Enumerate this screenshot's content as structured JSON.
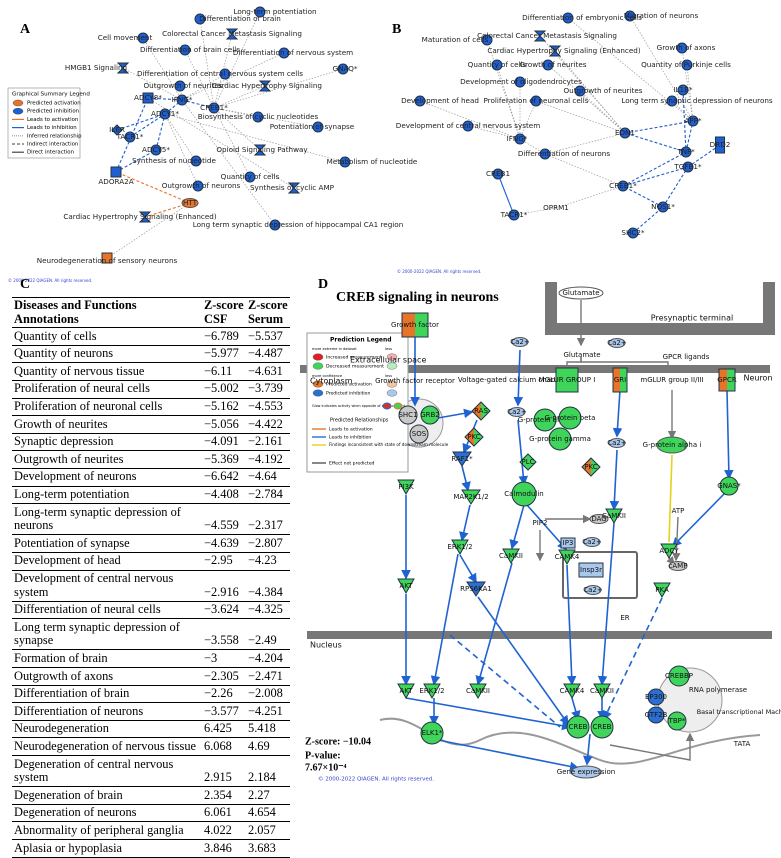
{
  "panel_a": {
    "letter": "A",
    "nodes": [
      {
        "label": "Differentiation of brain"
      },
      {
        "label": "Long-term potentiation"
      },
      {
        "label": "Cell movement"
      },
      {
        "label": "Colorectal Cancer Metastasis Signaling"
      },
      {
        "label": "Differentiation of brain cells"
      },
      {
        "label": "Differentiation of nervous system"
      },
      {
        "label": "HMGB1 Signaling"
      },
      {
        "label": "GNAQ*"
      },
      {
        "label": "Differentiation of central nervous system cells"
      },
      {
        "label": "Outgrowth of neurites"
      },
      {
        "label": "Cardiac Hypertrophy Signaling"
      },
      {
        "label": "IFNG*"
      },
      {
        "label": "ADCY1*"
      },
      {
        "label": "ADCY8*"
      },
      {
        "label": "CREB1*"
      },
      {
        "label": "TACR1*"
      },
      {
        "label": "IL6R"
      },
      {
        "label": "ADCY5*"
      },
      {
        "label": "Biosynthesis of cyclic nucleotides"
      },
      {
        "label": "Potentiation of synapse"
      },
      {
        "label": "Opioid Signaling Pathway"
      },
      {
        "label": "Synthesis of nucleotide"
      },
      {
        "label": "Metabolism of nucleotide"
      },
      {
        "label": "ADORA2A"
      },
      {
        "label": "Quantity of cells"
      },
      {
        "label": "Outgrowth of neurons"
      },
      {
        "label": "Synthesis of cyclic AMP"
      },
      {
        "label": "HTT"
      },
      {
        "label": "Cardiac Hypertrophy Signaling (Enhanced)"
      },
      {
        "label": "Long term synaptic depression of hippocampal CA1 region"
      },
      {
        "label": "Neurodegeneration of sensory neurons"
      }
    ],
    "legend": {
      "title": "Graphical Summary Legend",
      "items": [
        "Predicted activation",
        "Predicted inhibition",
        "Leads to activation",
        "Leads to inhibition",
        "Inferred relationship",
        "Indirect interaction",
        "Direct interaction"
      ]
    },
    "copyright": "© 2000-2022 QIAGEN. All rights reserved."
  },
  "panel_b": {
    "letter": "B",
    "nodes": [
      {
        "label": "Migration of neurons"
      },
      {
        "label": "Differentiation of embryonic cells"
      },
      {
        "label": "Maturation of cells"
      },
      {
        "label": "Colorectal Cancer Metastasis Signaling"
      },
      {
        "label": "Cardiac Hypertrophy Signaling (Enhanced)"
      },
      {
        "label": "Growth of axons"
      },
      {
        "label": "Quantity of cells"
      },
      {
        "label": "Growth of neurites"
      },
      {
        "label": "Quantity of Purkinje cells"
      },
      {
        "label": "Development of oligodendrocytes"
      },
      {
        "label": "Outgrowth of neurites"
      },
      {
        "label": "IL1B*"
      },
      {
        "label": "Development of head"
      },
      {
        "label": "Proliferation of neuronal cells"
      },
      {
        "label": "Long term synaptic depression of neurons"
      },
      {
        "label": "Development of central nervous system"
      },
      {
        "label": "APP*"
      },
      {
        "label": "IFNG*"
      },
      {
        "label": "Differentiation of neurons"
      },
      {
        "label": "EDN1"
      },
      {
        "label": "TNF*"
      },
      {
        "label": "DRD2"
      },
      {
        "label": "TGFB1*"
      },
      {
        "label": "CREB1"
      },
      {
        "label": "CREB1*"
      },
      {
        "label": "NOS1*"
      },
      {
        "label": "OPRM1"
      },
      {
        "label": "TACR1*"
      },
      {
        "label": "SHC2*"
      }
    ],
    "copyright": "© 2000-2022 QIAGEN. All rights reserved."
  },
  "panel_c": {
    "letter": "C",
    "headers": [
      "Diseases and Functions Annotations",
      "Z-score CSF",
      "Z-score Serum"
    ],
    "rows": [
      [
        "Quantity of cells",
        "−6.789",
        "−5.537"
      ],
      [
        "Quantity of neurons",
        "−5.977",
        "−4.487"
      ],
      [
        "Quantity of nervous tissue",
        "−6.11",
        "−4.631"
      ],
      [
        "Proliferation of neural cells",
        "−5.002",
        "−3.739"
      ],
      [
        "Proliferation of neuronal cells",
        "−5.162",
        "−4.553"
      ],
      [
        "Growth of neurites",
        "−5.056",
        "−4.422"
      ],
      [
        "Synaptic depression",
        "−4.091",
        "−2.161"
      ],
      [
        "Outgrowth of neurites",
        "−5.369",
        "−4.192"
      ],
      [
        "Development of neurons",
        "−6.642",
        "−4.64"
      ],
      [
        "Long-term potentiation",
        "−4.408",
        "−2.784"
      ],
      [
        "Long-term synaptic depression of neurons",
        "−4.559",
        "−2.317"
      ],
      [
        "Potentiation of synapse",
        "−4.639",
        "−2.807"
      ],
      [
        "Development of head",
        "−2.95",
        "−4.23"
      ],
      [
        "Development of central nervous system",
        "−2.916",
        "−4.384"
      ],
      [
        "Differentiation of neural cells",
        "−3.624",
        "−4.325"
      ],
      [
        "Long term synaptic depression of synapse",
        "−3.558",
        "−2.49"
      ],
      [
        "Formation of brain",
        "−3",
        "−4.204"
      ],
      [
        "Outgrowth of axons",
        "−2.305",
        "−2.471"
      ],
      [
        "Differentiation of brain",
        "−2.26",
        "−2.008"
      ],
      [
        "Differentiation of neurons",
        "−3.577",
        "−4.251"
      ],
      [
        "Neurodegeneration",
        "6.425",
        "5.418"
      ],
      [
        "Neurodegeneration of nervous tissue",
        "6.068",
        "4.69"
      ],
      [
        "Degeneration of central nervous system",
        "2.915",
        "2.184"
      ],
      [
        "Degeneration of brain",
        "2.354",
        "2.27"
      ],
      [
        "Degeneration of neurons",
        "6.061",
        "4.654"
      ],
      [
        "Abnormality of peripheral ganglia",
        "4.022",
        "2.057"
      ],
      [
        "Aplasia or hypoplasia",
        "3.846",
        "3.683"
      ]
    ]
  },
  "panel_d": {
    "letter": "D",
    "title": "CREB signaling in neurons",
    "nodes": [
      {
        "label": "Glutamate"
      },
      {
        "label": "Presynaptic terminal"
      },
      {
        "label": "Glutamate"
      },
      {
        "label": "Growth factor"
      },
      {
        "label": "Ca2+"
      },
      {
        "label": "Ca2+"
      },
      {
        "label": "GPCR ligands"
      },
      {
        "label": "Extracellular space"
      },
      {
        "label": "Growth factor receptor"
      },
      {
        "label": "Voltage-gated calcium channel"
      },
      {
        "label": "MGLUR GROUP I"
      },
      {
        "label": "GRI"
      },
      {
        "label": "mGLUR group II/III"
      },
      {
        "label": "GPCR"
      },
      {
        "label": "Cytoplasm"
      },
      {
        "label": "Neuron"
      },
      {
        "label": "SHC1"
      },
      {
        "label": "GRB2"
      },
      {
        "label": "SOS"
      },
      {
        "label": "RAS"
      },
      {
        "label": "Ca2+"
      },
      {
        "label": "PKC"
      },
      {
        "label": "G-protein alpha"
      },
      {
        "label": "G-protein beta"
      },
      {
        "label": "G-protein gamma"
      },
      {
        "label": "RAF1*"
      },
      {
        "label": "PLC"
      },
      {
        "label": "PKC"
      },
      {
        "label": "Ca2+"
      },
      {
        "label": "G-protein alpha i"
      },
      {
        "label": "GNAS*"
      },
      {
        "label": "PI3K"
      },
      {
        "label": "MAP2K1/2"
      },
      {
        "label": "Calmodulin"
      },
      {
        "label": "PIP2"
      },
      {
        "label": "DAG"
      },
      {
        "label": "CaMKII"
      },
      {
        "label": "ATP"
      },
      {
        "label": "ADCY"
      },
      {
        "label": "ERK1/2"
      },
      {
        "label": "CaMKII"
      },
      {
        "label": "CAMK4"
      },
      {
        "label": "IP3"
      },
      {
        "label": "Ca2+"
      },
      {
        "label": "Insp3r"
      },
      {
        "label": "Ca2+"
      },
      {
        "label": "ER"
      },
      {
        "label": "cAMP"
      },
      {
        "label": "PKA"
      },
      {
        "label": "AKT"
      },
      {
        "label": "RPS6KA1"
      },
      {
        "label": "Nucleus"
      },
      {
        "label": "AKT"
      },
      {
        "label": "ERK1/2"
      },
      {
        "label": "CaMKII"
      },
      {
        "label": "CAMK4"
      },
      {
        "label": "CaMKII"
      },
      {
        "label": "CREBBP"
      },
      {
        "label": "RNA polymerase"
      },
      {
        "label": "Basal transcriptional Machinery"
      },
      {
        "label": "TBP*"
      },
      {
        "label": "TATA"
      },
      {
        "label": "ELK1*"
      },
      {
        "label": "CREB"
      },
      {
        "label": "CREB"
      },
      {
        "label": "Gene expression"
      },
      {
        "label": "EP300"
      },
      {
        "label": "GTF2B"
      }
    ],
    "legend": {
      "title": "Prediction Legend",
      "extreme": "more extreme in dataset",
      "less": "less",
      "items_measure": [
        "Increased measurement",
        "Decreased measurement"
      ],
      "confidence": "more confidence",
      "items_pred": [
        "Predicted activation",
        "Predicted inhibition"
      ],
      "glow": "Glow indicates activity when opposite of measurement",
      "rel_title": "Predicted Relationships",
      "rel_items": [
        "Leads to activation",
        "Leads to inhibition",
        "Findings inconsistent with state of downstream molecule",
        "Effect not predicted"
      ]
    },
    "zscore": "Z-score: −10.04",
    "pvalue_label": "P-value:",
    "pvalue": "7.67×10⁻⁴",
    "copyright": "© 2000-2022 QIAGEN. All rights reserved."
  }
}
